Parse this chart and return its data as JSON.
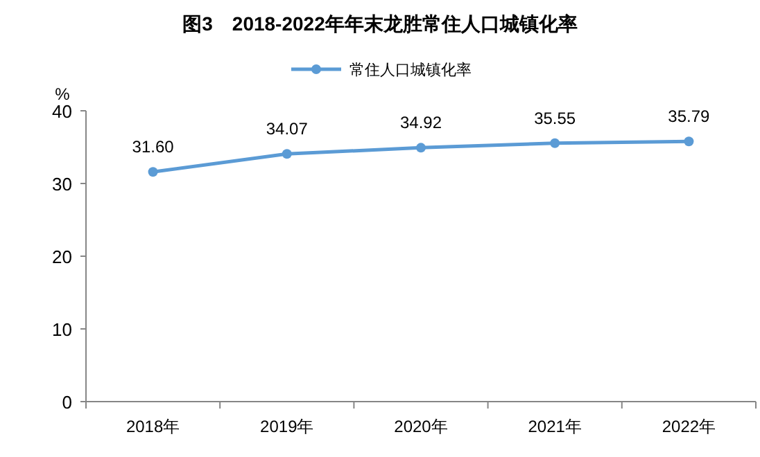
{
  "chart_data": {
    "type": "line",
    "title": "图3　2018-2022年年末龙胜常住人口城镇化率",
    "ylabel": "%",
    "categories": [
      "2018年",
      "2019年",
      "2020年",
      "2021年",
      "2022年"
    ],
    "series": [
      {
        "name": "常住人口城镇化率",
        "color": "#5b9bd5",
        "values": [
          31.6,
          34.07,
          34.92,
          35.55,
          35.79
        ],
        "value_labels": [
          "31.60",
          "34.07",
          "34.92",
          "35.55",
          "35.79"
        ]
      }
    ],
    "ylim": [
      0,
      40
    ],
    "yticks": [
      0,
      10,
      20,
      30,
      40
    ],
    "grid": false,
    "legend": "top",
    "marker": "circle",
    "line_style": "solid"
  }
}
